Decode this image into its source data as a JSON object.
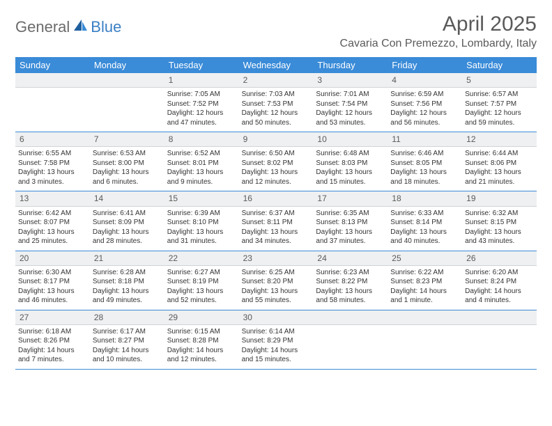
{
  "logo": {
    "part1": "General",
    "part2": "Blue"
  },
  "title": "April 2025",
  "location": "Cavaria Con Premezzo, Lombardy, Italy",
  "colors": {
    "header_bg": "#3a8bd8",
    "header_text": "#ffffff",
    "daynum_bg": "#eef0f1",
    "body_text": "#333333",
    "title_text": "#5a5a5a",
    "logo_gray": "#6b6b6b",
    "logo_blue": "#3a7fc4",
    "week_border": "#3a8bd8"
  },
  "day_headers": [
    "Sunday",
    "Monday",
    "Tuesday",
    "Wednesday",
    "Thursday",
    "Friday",
    "Saturday"
  ],
  "weeks": [
    [
      {
        "n": "",
        "sr": "",
        "ss": "",
        "dl": ""
      },
      {
        "n": "",
        "sr": "",
        "ss": "",
        "dl": ""
      },
      {
        "n": "1",
        "sr": "Sunrise: 7:05 AM",
        "ss": "Sunset: 7:52 PM",
        "dl": "Daylight: 12 hours and 47 minutes."
      },
      {
        "n": "2",
        "sr": "Sunrise: 7:03 AM",
        "ss": "Sunset: 7:53 PM",
        "dl": "Daylight: 12 hours and 50 minutes."
      },
      {
        "n": "3",
        "sr": "Sunrise: 7:01 AM",
        "ss": "Sunset: 7:54 PM",
        "dl": "Daylight: 12 hours and 53 minutes."
      },
      {
        "n": "4",
        "sr": "Sunrise: 6:59 AM",
        "ss": "Sunset: 7:56 PM",
        "dl": "Daylight: 12 hours and 56 minutes."
      },
      {
        "n": "5",
        "sr": "Sunrise: 6:57 AM",
        "ss": "Sunset: 7:57 PM",
        "dl": "Daylight: 12 hours and 59 minutes."
      }
    ],
    [
      {
        "n": "6",
        "sr": "Sunrise: 6:55 AM",
        "ss": "Sunset: 7:58 PM",
        "dl": "Daylight: 13 hours and 3 minutes."
      },
      {
        "n": "7",
        "sr": "Sunrise: 6:53 AM",
        "ss": "Sunset: 8:00 PM",
        "dl": "Daylight: 13 hours and 6 minutes."
      },
      {
        "n": "8",
        "sr": "Sunrise: 6:52 AM",
        "ss": "Sunset: 8:01 PM",
        "dl": "Daylight: 13 hours and 9 minutes."
      },
      {
        "n": "9",
        "sr": "Sunrise: 6:50 AM",
        "ss": "Sunset: 8:02 PM",
        "dl": "Daylight: 13 hours and 12 minutes."
      },
      {
        "n": "10",
        "sr": "Sunrise: 6:48 AM",
        "ss": "Sunset: 8:03 PM",
        "dl": "Daylight: 13 hours and 15 minutes."
      },
      {
        "n": "11",
        "sr": "Sunrise: 6:46 AM",
        "ss": "Sunset: 8:05 PM",
        "dl": "Daylight: 13 hours and 18 minutes."
      },
      {
        "n": "12",
        "sr": "Sunrise: 6:44 AM",
        "ss": "Sunset: 8:06 PM",
        "dl": "Daylight: 13 hours and 21 minutes."
      }
    ],
    [
      {
        "n": "13",
        "sr": "Sunrise: 6:42 AM",
        "ss": "Sunset: 8:07 PM",
        "dl": "Daylight: 13 hours and 25 minutes."
      },
      {
        "n": "14",
        "sr": "Sunrise: 6:41 AM",
        "ss": "Sunset: 8:09 PM",
        "dl": "Daylight: 13 hours and 28 minutes."
      },
      {
        "n": "15",
        "sr": "Sunrise: 6:39 AM",
        "ss": "Sunset: 8:10 PM",
        "dl": "Daylight: 13 hours and 31 minutes."
      },
      {
        "n": "16",
        "sr": "Sunrise: 6:37 AM",
        "ss": "Sunset: 8:11 PM",
        "dl": "Daylight: 13 hours and 34 minutes."
      },
      {
        "n": "17",
        "sr": "Sunrise: 6:35 AM",
        "ss": "Sunset: 8:13 PM",
        "dl": "Daylight: 13 hours and 37 minutes."
      },
      {
        "n": "18",
        "sr": "Sunrise: 6:33 AM",
        "ss": "Sunset: 8:14 PM",
        "dl": "Daylight: 13 hours and 40 minutes."
      },
      {
        "n": "19",
        "sr": "Sunrise: 6:32 AM",
        "ss": "Sunset: 8:15 PM",
        "dl": "Daylight: 13 hours and 43 minutes."
      }
    ],
    [
      {
        "n": "20",
        "sr": "Sunrise: 6:30 AM",
        "ss": "Sunset: 8:17 PM",
        "dl": "Daylight: 13 hours and 46 minutes."
      },
      {
        "n": "21",
        "sr": "Sunrise: 6:28 AM",
        "ss": "Sunset: 8:18 PM",
        "dl": "Daylight: 13 hours and 49 minutes."
      },
      {
        "n": "22",
        "sr": "Sunrise: 6:27 AM",
        "ss": "Sunset: 8:19 PM",
        "dl": "Daylight: 13 hours and 52 minutes."
      },
      {
        "n": "23",
        "sr": "Sunrise: 6:25 AM",
        "ss": "Sunset: 8:20 PM",
        "dl": "Daylight: 13 hours and 55 minutes."
      },
      {
        "n": "24",
        "sr": "Sunrise: 6:23 AM",
        "ss": "Sunset: 8:22 PM",
        "dl": "Daylight: 13 hours and 58 minutes."
      },
      {
        "n": "25",
        "sr": "Sunrise: 6:22 AM",
        "ss": "Sunset: 8:23 PM",
        "dl": "Daylight: 14 hours and 1 minute."
      },
      {
        "n": "26",
        "sr": "Sunrise: 6:20 AM",
        "ss": "Sunset: 8:24 PM",
        "dl": "Daylight: 14 hours and 4 minutes."
      }
    ],
    [
      {
        "n": "27",
        "sr": "Sunrise: 6:18 AM",
        "ss": "Sunset: 8:26 PM",
        "dl": "Daylight: 14 hours and 7 minutes."
      },
      {
        "n": "28",
        "sr": "Sunrise: 6:17 AM",
        "ss": "Sunset: 8:27 PM",
        "dl": "Daylight: 14 hours and 10 minutes."
      },
      {
        "n": "29",
        "sr": "Sunrise: 6:15 AM",
        "ss": "Sunset: 8:28 PM",
        "dl": "Daylight: 14 hours and 12 minutes."
      },
      {
        "n": "30",
        "sr": "Sunrise: 6:14 AM",
        "ss": "Sunset: 8:29 PM",
        "dl": "Daylight: 14 hours and 15 minutes."
      },
      {
        "n": "",
        "sr": "",
        "ss": "",
        "dl": ""
      },
      {
        "n": "",
        "sr": "",
        "ss": "",
        "dl": ""
      },
      {
        "n": "",
        "sr": "",
        "ss": "",
        "dl": ""
      }
    ]
  ]
}
